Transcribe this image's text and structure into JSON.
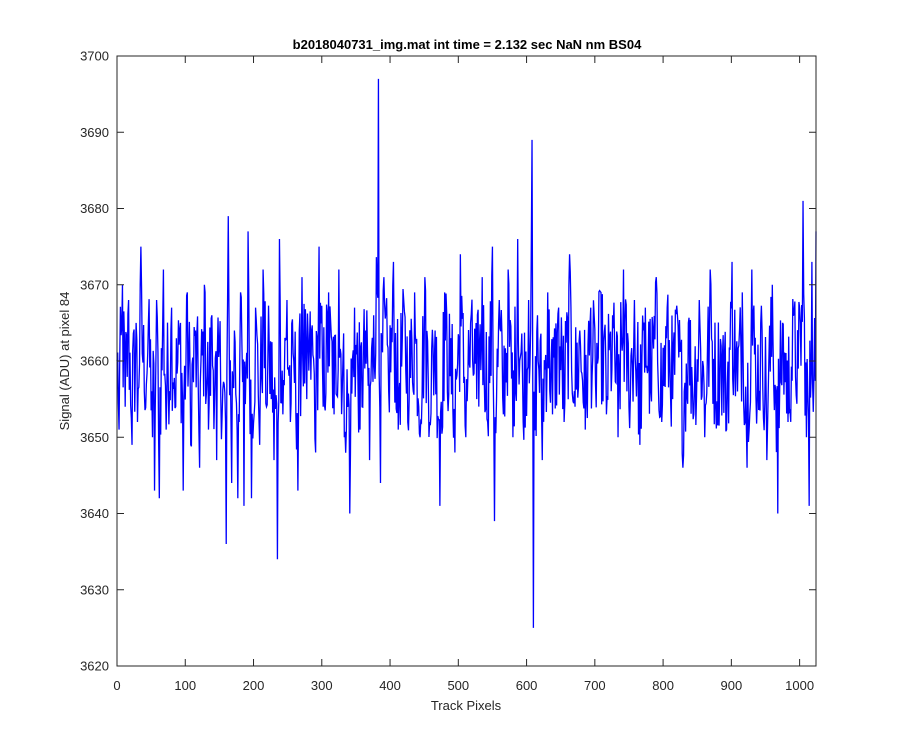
{
  "chart_data": {
    "type": "line",
    "title": "b2018040731_img.mat int time = 2.132 sec  NaN nm BS04",
    "xlabel": "Track Pixels",
    "ylabel": "Signal (ADU) at pixel 84",
    "xlim": [
      0,
      1024
    ],
    "ylim": [
      3620,
      3700
    ],
    "x_ticks": [
      "0",
      "100",
      "200",
      "300",
      "400",
      "500",
      "600",
      "700",
      "800",
      "900",
      "1000"
    ],
    "y_ticks": [
      "3620",
      "3630",
      "3640",
      "3650",
      "3660",
      "3670",
      "3680",
      "3690",
      "3700"
    ],
    "grid": false,
    "legend": "none",
    "series": [
      {
        "color": "#0000ff",
        "description_points": [
          [
            0,
            3660
          ],
          [
            3,
            3651
          ],
          [
            8,
            3670
          ],
          [
            12,
            3654
          ],
          [
            17,
            3668
          ],
          [
            22,
            3649
          ],
          [
            28,
            3665
          ],
          [
            30,
            3652
          ],
          [
            35,
            3675
          ],
          [
            40,
            3656
          ],
          [
            46,
            3665
          ],
          [
            52,
            3650
          ],
          [
            55,
            3643
          ],
          [
            58,
            3668
          ],
          [
            62,
            3642
          ],
          [
            68,
            3672
          ],
          [
            72,
            3651
          ],
          [
            80,
            3667
          ],
          [
            86,
            3654
          ],
          [
            93,
            3665
          ],
          [
            97,
            3643
          ],
          [
            103,
            3669
          ],
          [
            108,
            3649
          ],
          [
            115,
            3664
          ],
          [
            121,
            3646
          ],
          [
            128,
            3670
          ],
          [
            134,
            3651
          ],
          [
            139,
            3666
          ],
          [
            146,
            3647
          ],
          [
            150,
            3662
          ],
          [
            160,
            3636
          ],
          [
            163,
            3679
          ],
          [
            168,
            3644
          ],
          [
            172,
            3664
          ],
          [
            177,
            3642
          ],
          [
            181,
            3669
          ],
          [
            186,
            3641
          ],
          [
            192,
            3677
          ],
          [
            197,
            3642
          ],
          [
            203,
            3667
          ],
          [
            209,
            3649
          ],
          [
            214,
            3672
          ],
          [
            219,
            3654
          ],
          [
            223,
            3662
          ],
          [
            230,
            3647
          ],
          [
            235,
            3634
          ],
          [
            238,
            3676
          ],
          [
            243,
            3653
          ],
          [
            249,
            3668
          ],
          [
            254,
            3652
          ],
          [
            259,
            3660
          ],
          [
            265,
            3643
          ],
          [
            271,
            3671
          ],
          [
            278,
            3655
          ],
          [
            285,
            3664
          ],
          [
            291,
            3648
          ],
          [
            296,
            3675
          ],
          [
            302,
            3654
          ],
          [
            310,
            3669
          ],
          [
            318,
            3653
          ],
          [
            325,
            3672
          ],
          [
            333,
            3650
          ],
          [
            341,
            3640
          ],
          [
            348,
            3667
          ],
          [
            356,
            3651
          ],
          [
            364,
            3664
          ],
          [
            370,
            3647
          ],
          [
            376,
            3666
          ],
          [
            383,
            3697
          ],
          [
            386,
            3644
          ],
          [
            391,
            3671
          ],
          [
            398,
            3656
          ],
          [
            405,
            3673
          ],
          [
            412,
            3651
          ],
          [
            420,
            3668
          ],
          [
            428,
            3655
          ],
          [
            436,
            3669
          ],
          [
            444,
            3650
          ],
          [
            451,
            3671
          ],
          [
            458,
            3652
          ],
          [
            466,
            3664
          ],
          [
            473,
            3641
          ],
          [
            480,
            3669
          ],
          [
            488,
            3658
          ],
          [
            495,
            3648
          ],
          [
            503,
            3674
          ],
          [
            511,
            3650
          ],
          [
            518,
            3665
          ],
          [
            527,
            3655
          ],
          [
            535,
            3671
          ],
          [
            543,
            3652
          ],
          [
            550,
            3675
          ],
          [
            553,
            3639
          ],
          [
            560,
            3668
          ],
          [
            566,
            3653
          ],
          [
            573,
            3672
          ],
          [
            580,
            3650
          ],
          [
            587,
            3676
          ],
          [
            595,
            3652
          ],
          [
            603,
            3668
          ],
          [
            608,
            3689
          ],
          [
            610,
            3625
          ],
          [
            616,
            3666
          ],
          [
            623,
            3647
          ],
          [
            631,
            3669
          ],
          [
            638,
            3653
          ],
          [
            647,
            3667
          ],
          [
            655,
            3652
          ],
          [
            663,
            3674
          ],
          [
            671,
            3654
          ],
          [
            678,
            3664
          ],
          [
            686,
            3651
          ],
          [
            694,
            3667
          ],
          [
            701,
            3657
          ],
          [
            709,
            3669
          ],
          [
            717,
            3653
          ],
          [
            726,
            3666
          ],
          [
            734,
            3650
          ],
          [
            742,
            3672
          ],
          [
            750,
            3654
          ],
          [
            758,
            3668
          ],
          [
            766,
            3649
          ],
          [
            774,
            3667
          ],
          [
            782,
            3656
          ],
          [
            790,
            3671
          ],
          [
            798,
            3652
          ],
          [
            806,
            3667
          ],
          [
            814,
            3655
          ],
          [
            821,
            3666
          ],
          [
            829,
            3646
          ],
          [
            837,
            3665
          ],
          [
            845,
            3653
          ],
          [
            853,
            3668
          ],
          [
            861,
            3650
          ],
          [
            869,
            3672
          ],
          [
            877,
            3654
          ],
          [
            885,
            3662
          ],
          [
            893,
            3651
          ],
          [
            901,
            3673
          ],
          [
            909,
            3656
          ],
          [
            916,
            3669
          ],
          [
            923,
            3646
          ],
          [
            930,
            3672
          ],
          [
            938,
            3655
          ],
          [
            945,
            3664
          ],
          [
            952,
            3647
          ],
          [
            960,
            3670
          ],
          [
            968,
            3640
          ],
          [
            975,
            3665
          ],
          [
            983,
            3652
          ],
          [
            991,
            3666
          ],
          [
            998,
            3659
          ],
          [
            1005,
            3681
          ],
          [
            1010,
            3650
          ],
          [
            1014,
            3641
          ],
          [
            1018,
            3673
          ],
          [
            1021,
            3658
          ],
          [
            1024,
            3677
          ]
        ]
      }
    ]
  }
}
